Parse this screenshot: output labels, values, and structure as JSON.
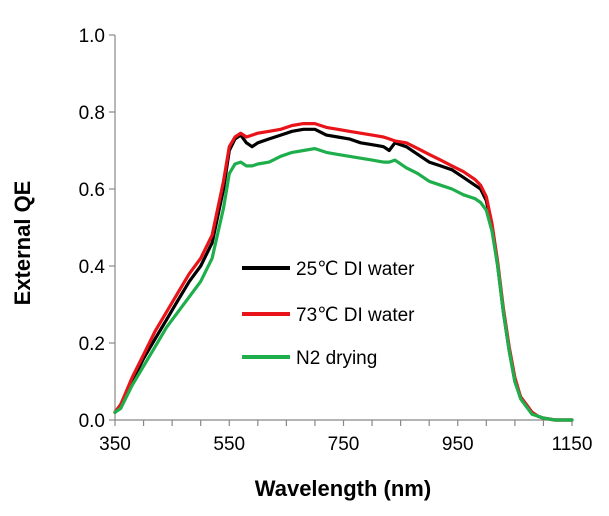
{
  "chart_data": {
    "type": "line",
    "title": "",
    "xlabel": "Wavelength (nm)",
    "ylabel": "External QE",
    "xlim": [
      350,
      1150
    ],
    "ylim": [
      0.0,
      1.0
    ],
    "xticks": [
      "350",
      "550",
      "750",
      "950",
      "1150"
    ],
    "yticks": [
      "0.0",
      "0.2",
      "0.4",
      "0.6",
      "0.8",
      "1.0"
    ],
    "grid": false,
    "legend_position": "center",
    "series": [
      {
        "name": "25℃ DI water",
        "color": "#000000",
        "x": [
          350,
          360,
          380,
          400,
          420,
          440,
          460,
          480,
          500,
          520,
          540,
          550,
          560,
          570,
          580,
          590,
          600,
          620,
          640,
          660,
          680,
          700,
          720,
          740,
          760,
          780,
          800,
          820,
          830,
          840,
          860,
          880,
          900,
          920,
          940,
          960,
          980,
          990,
          1000,
          1010,
          1020,
          1030,
          1040,
          1050,
          1060,
          1070,
          1080,
          1090,
          1100,
          1120,
          1140,
          1150
        ],
        "y": [
          0.02,
          0.04,
          0.1,
          0.16,
          0.21,
          0.26,
          0.31,
          0.36,
          0.4,
          0.46,
          0.6,
          0.7,
          0.73,
          0.74,
          0.72,
          0.71,
          0.72,
          0.73,
          0.74,
          0.75,
          0.755,
          0.755,
          0.74,
          0.735,
          0.73,
          0.72,
          0.715,
          0.71,
          0.7,
          0.72,
          0.71,
          0.69,
          0.67,
          0.66,
          0.65,
          0.63,
          0.61,
          0.6,
          0.57,
          0.5,
          0.4,
          0.28,
          0.18,
          0.1,
          0.06,
          0.04,
          0.02,
          0.01,
          0.005,
          0.0,
          0.0,
          0.0
        ]
      },
      {
        "name": "73℃ DI water",
        "color": "#e8141a",
        "x": [
          350,
          360,
          380,
          400,
          420,
          440,
          460,
          480,
          500,
          520,
          540,
          550,
          560,
          570,
          580,
          590,
          600,
          620,
          640,
          660,
          680,
          700,
          720,
          740,
          760,
          780,
          800,
          820,
          830,
          840,
          860,
          880,
          900,
          920,
          940,
          960,
          980,
          990,
          1000,
          1010,
          1020,
          1030,
          1040,
          1050,
          1060,
          1070,
          1080,
          1090,
          1100,
          1120,
          1140,
          1150
        ],
        "y": [
          0.02,
          0.04,
          0.11,
          0.17,
          0.23,
          0.28,
          0.33,
          0.38,
          0.42,
          0.48,
          0.62,
          0.71,
          0.735,
          0.745,
          0.735,
          0.74,
          0.745,
          0.75,
          0.755,
          0.765,
          0.77,
          0.77,
          0.76,
          0.755,
          0.75,
          0.745,
          0.74,
          0.735,
          0.73,
          0.725,
          0.72,
          0.705,
          0.69,
          0.675,
          0.66,
          0.645,
          0.625,
          0.61,
          0.58,
          0.51,
          0.41,
          0.29,
          0.19,
          0.11,
          0.06,
          0.04,
          0.02,
          0.01,
          0.005,
          0.0,
          0.0,
          0.0
        ]
      },
      {
        "name": "N2 drying",
        "color": "#1fae4c",
        "x": [
          350,
          360,
          380,
          400,
          420,
          440,
          460,
          480,
          500,
          520,
          540,
          550,
          560,
          570,
          580,
          590,
          600,
          620,
          640,
          660,
          680,
          700,
          720,
          740,
          760,
          780,
          800,
          820,
          830,
          840,
          860,
          880,
          900,
          920,
          940,
          960,
          980,
          990,
          1000,
          1010,
          1020,
          1030,
          1040,
          1050,
          1060,
          1070,
          1080,
          1090,
          1100,
          1120,
          1140,
          1150
        ],
        "y": [
          0.02,
          0.03,
          0.09,
          0.14,
          0.19,
          0.24,
          0.28,
          0.32,
          0.36,
          0.42,
          0.55,
          0.64,
          0.665,
          0.67,
          0.66,
          0.66,
          0.665,
          0.67,
          0.685,
          0.695,
          0.7,
          0.705,
          0.695,
          0.69,
          0.685,
          0.68,
          0.675,
          0.67,
          0.67,
          0.675,
          0.655,
          0.64,
          0.62,
          0.61,
          0.6,
          0.585,
          0.575,
          0.565,
          0.545,
          0.49,
          0.4,
          0.28,
          0.18,
          0.1,
          0.055,
          0.035,
          0.015,
          0.01,
          0.005,
          0.0,
          0.0,
          0.0
        ]
      }
    ]
  }
}
